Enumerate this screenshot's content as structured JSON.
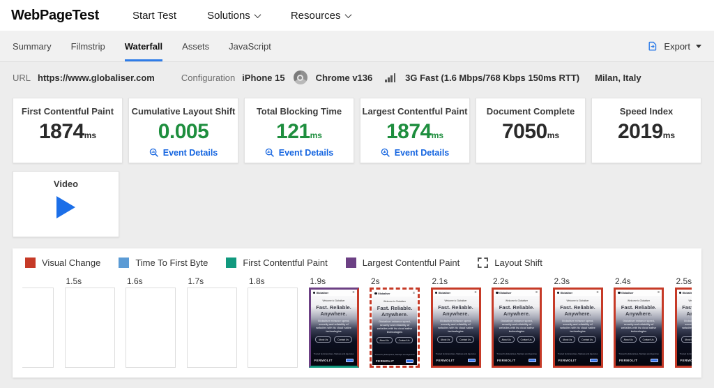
{
  "header": {
    "logo": "WebPageTest",
    "nav": [
      {
        "label": "Start Test",
        "has_caret": false
      },
      {
        "label": "Solutions",
        "has_caret": true
      },
      {
        "label": "Resources",
        "has_caret": true
      }
    ]
  },
  "tabbar": {
    "tabs": [
      {
        "label": "Summary",
        "active": false
      },
      {
        "label": "Filmstrip",
        "active": false
      },
      {
        "label": "Waterfall",
        "active": true
      },
      {
        "label": "Assets",
        "active": false
      },
      {
        "label": "JavaScript",
        "active": false
      }
    ],
    "export_label": "Export"
  },
  "test_info": {
    "url_label": "URL",
    "url": "https://www.globaliser.com",
    "config_label": "Configuration",
    "device": "iPhone 15",
    "browser": "Chrome v136",
    "connection": "3G Fast (1.6 Mbps/768 Kbps 150ms RTT)",
    "location": "Milan, Italy"
  },
  "metrics": {
    "event_details_label": "Event Details",
    "cards": [
      {
        "title": "First Contentful Paint",
        "value": "1874",
        "unit": "ms",
        "tone": "neutral",
        "event_details": false
      },
      {
        "title": "Cumulative Layout Shift",
        "value": "0.005",
        "unit": "",
        "tone": "good",
        "event_details": true
      },
      {
        "title": "Total Blocking Time",
        "value": "121",
        "unit": "ms",
        "tone": "good",
        "event_details": true
      },
      {
        "title": "Largest Contentful Paint",
        "value": "1874",
        "unit": "ms",
        "tone": "good",
        "event_details": true
      },
      {
        "title": "Document Complete",
        "value": "7050",
        "unit": "ms",
        "tone": "neutral",
        "event_details": false
      },
      {
        "title": "Speed Index",
        "value": "2019",
        "unit": "ms",
        "tone": "neutral",
        "event_details": false
      }
    ]
  },
  "video_card": {
    "title": "Video"
  },
  "filmstrip": {
    "legend": [
      {
        "label": "Visual Change",
        "color": "#c63a27",
        "style": "solid"
      },
      {
        "label": "Time To First Byte",
        "color": "#5b9bd5",
        "style": "solid"
      },
      {
        "label": "First Contentful Paint",
        "color": "#11997e",
        "style": "solid"
      },
      {
        "label": "Largest Contentful Paint",
        "color": "#6c4084",
        "style": "solid"
      },
      {
        "label": "Layout Shift",
        "color": "#555555",
        "style": "dashed"
      }
    ],
    "frames": [
      {
        "time": "",
        "type": "empty",
        "border": "none"
      },
      {
        "time": "1.5s",
        "type": "empty",
        "border": "none"
      },
      {
        "time": "1.6s",
        "type": "empty",
        "border": "none"
      },
      {
        "time": "1.7s",
        "type": "empty",
        "border": "none"
      },
      {
        "time": "1.8s",
        "type": "empty",
        "border": "none"
      },
      {
        "time": "1.9s",
        "type": "screenshot",
        "border": "multi"
      },
      {
        "time": "2s",
        "type": "screenshot",
        "border": "layout-shift"
      },
      {
        "time": "2.1s",
        "type": "screenshot",
        "border": "visual-change"
      },
      {
        "time": "2.2s",
        "type": "screenshot",
        "border": "visual-change"
      },
      {
        "time": "2.3s",
        "type": "screenshot",
        "border": "visual-change"
      },
      {
        "time": "2.4s",
        "type": "screenshot",
        "border": "visual-change"
      },
      {
        "time": "2.5s",
        "type": "screenshot",
        "border": "visual-change"
      }
    ],
    "thumbnail": {
      "site_name": "Globaliser",
      "menu_icon": "≡",
      "tagline": "Welcome to Globaliser",
      "headline_line1": "Fast. Reliable.",
      "headline_line2": "Anywhere.",
      "description": "Globaliser enhance speed, security and reliability of websites with its cloud native technologies",
      "button1": "About Us",
      "button2": "Contact Us",
      "trusted_line": "Trusted by Enterprises, Startups and Agencies",
      "footer_brand": "FERMOLIT"
    }
  },
  "colors": {
    "accent_blue": "#1565e0",
    "tab_underline": "#2e7ce8",
    "good_green": "#1e8e3e",
    "visual_change_red": "#c63a27",
    "fcp_teal": "#11997e",
    "lcp_purple": "#6c4084",
    "ttfb_blue": "#5b9bd5"
  }
}
